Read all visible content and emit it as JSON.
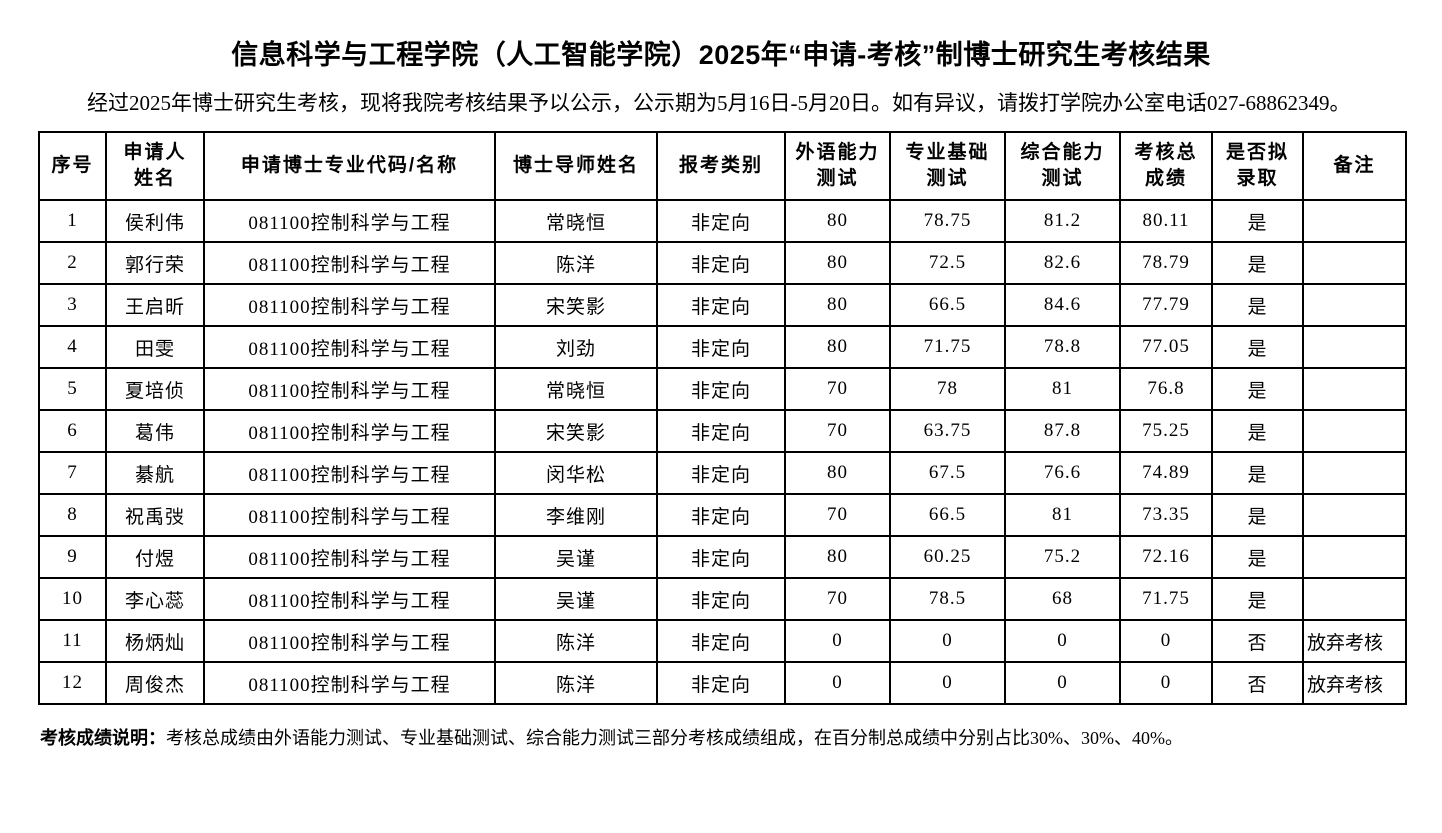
{
  "page": {
    "title": "信息科学与工程学院（人工智能学院）2025年“申请-考核”制博士研究生考核结果",
    "intro": "经过2025年博士研究生考核，现将我院考核结果予以公示，公示期为5月16日-5月20日。如有异议，请拨打学院办公室电话027-68862349。",
    "note_label": "考核成绩说明：",
    "note_text": "考核总成绩由外语能力测试、专业基础测试、综合能力测试三部分考核成绩组成，在百分制总成绩中分别占比30%、30%、40%。"
  },
  "table": {
    "column_keys": [
      "index",
      "applicant-name",
      "major-code-name",
      "supervisor-name",
      "enrollment-category",
      "foreign-language-score",
      "professional-basis-score",
      "comprehensive-ability-score",
      "total-score",
      "admitted",
      "remark"
    ],
    "headers": [
      "序号",
      "申请人\n姓名",
      "申请博士专业代码/名称",
      "博士导师姓名",
      "报考类别",
      "外语能力\n测试",
      "专业基础\n测试",
      "综合能力\n测试",
      "考核总\n成绩",
      "是否拟\n录取",
      "备注"
    ],
    "rows": [
      [
        "1",
        "侯利伟",
        "081100控制科学与工程",
        "常晓恒",
        "非定向",
        "80",
        "78.75",
        "81.2",
        "80.11",
        "是",
        ""
      ],
      [
        "2",
        "郭行荣",
        "081100控制科学与工程",
        "陈洋",
        "非定向",
        "80",
        "72.5",
        "82.6",
        "78.79",
        "是",
        ""
      ],
      [
        "3",
        "王启昕",
        "081100控制科学与工程",
        "宋笑影",
        "非定向",
        "80",
        "66.5",
        "84.6",
        "77.79",
        "是",
        ""
      ],
      [
        "4",
        "田雯",
        "081100控制科学与工程",
        "刘劲",
        "非定向",
        "80",
        "71.75",
        "78.8",
        "77.05",
        "是",
        ""
      ],
      [
        "5",
        "夏培侦",
        "081100控制科学与工程",
        "常晓恒",
        "非定向",
        "70",
        "78",
        "81",
        "76.8",
        "是",
        ""
      ],
      [
        "6",
        "葛伟",
        "081100控制科学与工程",
        "宋笑影",
        "非定向",
        "70",
        "63.75",
        "87.8",
        "75.25",
        "是",
        ""
      ],
      [
        "7",
        "綦航",
        "081100控制科学与工程",
        "闵华松",
        "非定向",
        "80",
        "67.5",
        "76.6",
        "74.89",
        "是",
        ""
      ],
      [
        "8",
        "祝禹弢",
        "081100控制科学与工程",
        "李维刚",
        "非定向",
        "70",
        "66.5",
        "81",
        "73.35",
        "是",
        ""
      ],
      [
        "9",
        "付煜",
        "081100控制科学与工程",
        "吴谨",
        "非定向",
        "80",
        "60.25",
        "75.2",
        "72.16",
        "是",
        ""
      ],
      [
        "10",
        "李心蕊",
        "081100控制科学与工程",
        "吴谨",
        "非定向",
        "70",
        "78.5",
        "68",
        "71.75",
        "是",
        ""
      ],
      [
        "11",
        "杨炳灿",
        "081100控制科学与工程",
        "陈洋",
        "非定向",
        "0",
        "0",
        "0",
        "0",
        "否",
        "放弃考核"
      ],
      [
        "12",
        "周俊杰",
        "081100控制科学与工程",
        "陈洋",
        "非定向",
        "0",
        "0",
        "0",
        "0",
        "否",
        "放弃考核"
      ]
    ]
  }
}
